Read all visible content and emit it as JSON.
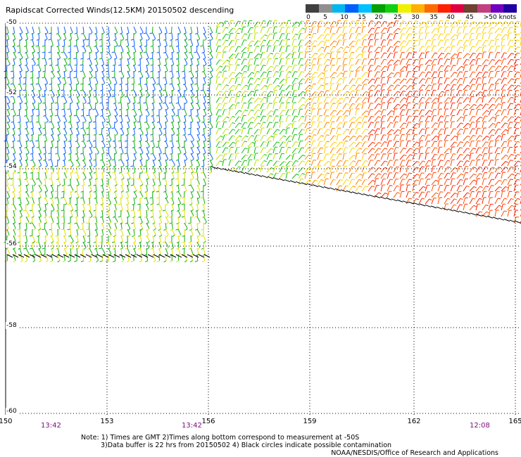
{
  "title": "Rapidscat Corrected Winds(12.5KM) 20150502 descending",
  "legend": {
    "colors": [
      "#404040",
      "#909090",
      "#00b8f0",
      "#0060ff",
      "#00c0ff",
      "#00a000",
      "#10d010",
      "#f0f000",
      "#ffb000",
      "#ff6a00",
      "#ff2000",
      "#e00040",
      "#704030",
      "#c04080",
      "#7000c0",
      "#2000a0"
    ],
    "labels": [
      "0",
      "5",
      "10",
      "15",
      "20",
      "25",
      "30",
      "35",
      "40",
      "45",
      ">50 knots"
    ]
  },
  "x_labels": [
    "150",
    "153",
    "156",
    "159",
    "162",
    "165"
  ],
  "y_labels": [
    "-50",
    "-52",
    "-54",
    "-56",
    "-58",
    "-60"
  ],
  "times": [
    "13:42",
    "13:42",
    "12:08"
  ],
  "note_lines": [
    "Note: 1) Times are GMT 2)Times along bottom correspond to measurement at -50S",
    "3)Data buffer is 22 hrs from 20150502 4) Black circles indicate possible contamination"
  ],
  "credit": "NOAA/NESDIS/Office of Research and Applications"
}
